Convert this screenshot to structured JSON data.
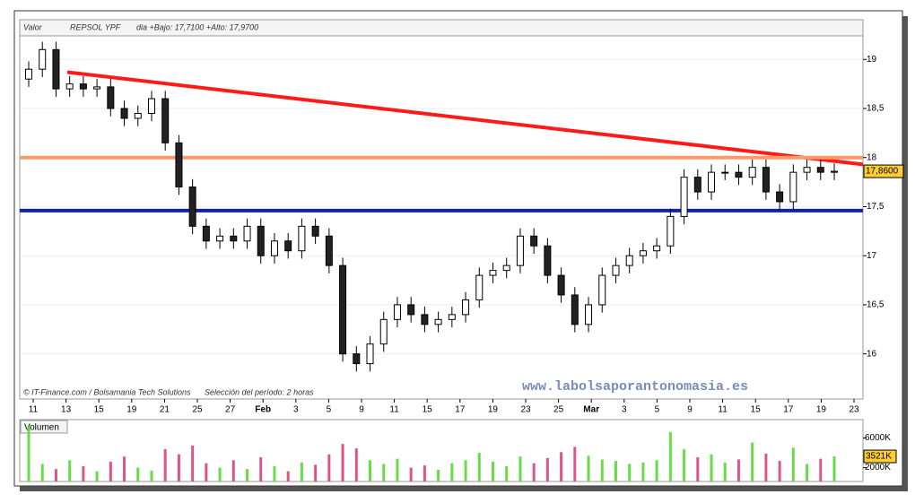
{
  "chart_data": {
    "type": "candlestick",
    "header": {
      "field": "Valor",
      "name": "REPSOL YPF",
      "range": "dia +Bajo: 17,7100 +Alto: 17,9700"
    },
    "credit": "© IT-Finance.com / Bolsamania Tech Solutions",
    "period": "Selección del período: 2 horas",
    "watermark": "www.labolsaporantonomasia.es",
    "categories": [
      "11",
      "13",
      "15",
      "19",
      "21",
      "25",
      "27",
      "Feb",
      "3",
      "5",
      "9",
      "11",
      "15",
      "17",
      "19",
      "23",
      "25",
      "Mar",
      "3",
      "5",
      "9",
      "11",
      "15",
      "17",
      "19",
      "23"
    ],
    "open": [
      18.8,
      18.9,
      19.1,
      18.7,
      18.75,
      18.7,
      18.72,
      18.5,
      18.4,
      18.45,
      18.6,
      18.15,
      17.7,
      17.3,
      17.15,
      17.2,
      17.15,
      17.3,
      17.0,
      17.15,
      17.05,
      17.3,
      17.2,
      16.9,
      16.0,
      15.9,
      16.1,
      16.35,
      16.5,
      16.4,
      16.3,
      16.35,
      16.4,
      16.55,
      16.8,
      16.85,
      16.9,
      17.2,
      17.1,
      16.8,
      16.6,
      16.3,
      16.5,
      16.8,
      16.9,
      17.0,
      17.05,
      17.1,
      17.4,
      17.8,
      17.65,
      17.85,
      17.85,
      17.8,
      17.9,
      17.65,
      17.55,
      17.85,
      17.9,
      17.85
    ],
    "high": [
      18.98,
      19.18,
      19.18,
      18.83,
      18.83,
      18.8,
      18.8,
      18.58,
      18.53,
      18.68,
      18.68,
      18.23,
      17.78,
      17.38,
      17.28,
      17.28,
      17.38,
      17.38,
      17.23,
      17.23,
      17.38,
      17.38,
      17.28,
      16.98,
      16.08,
      16.18,
      16.43,
      16.58,
      16.58,
      16.48,
      16.43,
      16.48,
      16.63,
      16.88,
      16.93,
      16.98,
      17.28,
      17.28,
      17.18,
      16.88,
      16.68,
      16.58,
      16.88,
      16.98,
      17.08,
      17.13,
      17.18,
      17.48,
      17.88,
      17.88,
      17.93,
      17.93,
      17.93,
      17.98,
      17.98,
      17.73,
      17.93,
      17.98,
      17.98,
      17.94
    ],
    "low": [
      18.72,
      18.82,
      18.62,
      18.62,
      18.62,
      18.62,
      18.42,
      18.32,
      18.32,
      18.37,
      18.07,
      17.62,
      17.22,
      17.07,
      17.07,
      17.07,
      17.07,
      16.92,
      16.92,
      16.97,
      16.97,
      17.12,
      16.82,
      15.92,
      15.82,
      15.82,
      16.02,
      16.27,
      16.32,
      16.22,
      16.22,
      16.27,
      16.32,
      16.47,
      16.72,
      16.77,
      16.82,
      17.02,
      16.72,
      16.52,
      16.22,
      16.22,
      16.42,
      16.72,
      16.82,
      16.92,
      16.97,
      17.02,
      17.32,
      17.57,
      17.57,
      17.77,
      17.72,
      17.72,
      17.57,
      17.47,
      17.47,
      17.77,
      17.77,
      17.77
    ],
    "close": [
      18.9,
      19.1,
      18.7,
      18.75,
      18.7,
      18.72,
      18.5,
      18.4,
      18.45,
      18.6,
      18.15,
      17.7,
      17.3,
      17.15,
      17.2,
      17.15,
      17.3,
      17.0,
      17.15,
      17.05,
      17.3,
      17.2,
      16.9,
      16.0,
      15.9,
      16.1,
      16.35,
      16.5,
      16.4,
      16.3,
      16.35,
      16.4,
      16.55,
      16.8,
      16.85,
      16.9,
      17.2,
      17.1,
      16.8,
      16.6,
      16.3,
      16.5,
      16.8,
      16.9,
      17.0,
      17.05,
      17.1,
      17.4,
      17.8,
      17.65,
      17.85,
      17.85,
      17.8,
      17.9,
      17.65,
      17.55,
      17.85,
      17.9,
      17.85,
      17.86
    ],
    "up_color": "#ffffff",
    "down_color": "#222222",
    "wick_color": "#000000",
    "ylim": [
      15.54,
      19.24
    ],
    "yticks": [
      16,
      {
        "value": 16.5,
        "label": "16,5"
      },
      17,
      {
        "value": 17.5,
        "label": "17,5"
      },
      18,
      {
        "value": 18.5,
        "label": "18,5"
      },
      19
    ],
    "last": {
      "value": 17.86,
      "label": "17,8600"
    },
    "lines": [
      {
        "color": "#ff1a1a",
        "values": [
          18.87,
          17.93
        ]
      },
      {
        "color": "#ff9966",
        "values": [
          18.0,
          18.0
        ]
      },
      {
        "color": "#1020b0",
        "values": [
          17.46,
          17.46
        ]
      }
    ],
    "volume": {
      "label": "Volumen",
      "values": [
        7500,
        2500,
        1800,
        3000,
        2200,
        1500,
        2800,
        3500,
        2000,
        1600,
        4500,
        3800,
        5000,
        2600,
        2000,
        3000,
        1800,
        3400,
        2200,
        1500,
        2700,
        2400,
        3800,
        5200,
        4600,
        3000,
        2500,
        3200,
        2000,
        2300,
        1700,
        2600,
        3000,
        4000,
        2800,
        2200,
        3500,
        2600,
        3300,
        4100,
        4800,
        3600,
        3100,
        2900,
        2500,
        2700,
        3000,
        6800,
        4500,
        3400,
        3800,
        2700,
        3100,
        5400,
        3900,
        2900,
        4700,
        2500,
        3200,
        3521
      ],
      "up_color": "#66dd44",
      "down_color": "#dd5588",
      "ylim": [
        125,
        8500
      ],
      "yticks": [
        {
          "value": 2000,
          "label": "2000K"
        },
        {
          "value": 6000,
          "label": "6000K"
        }
      ],
      "last": {
        "value": 3521,
        "label": "3521K"
      }
    }
  }
}
